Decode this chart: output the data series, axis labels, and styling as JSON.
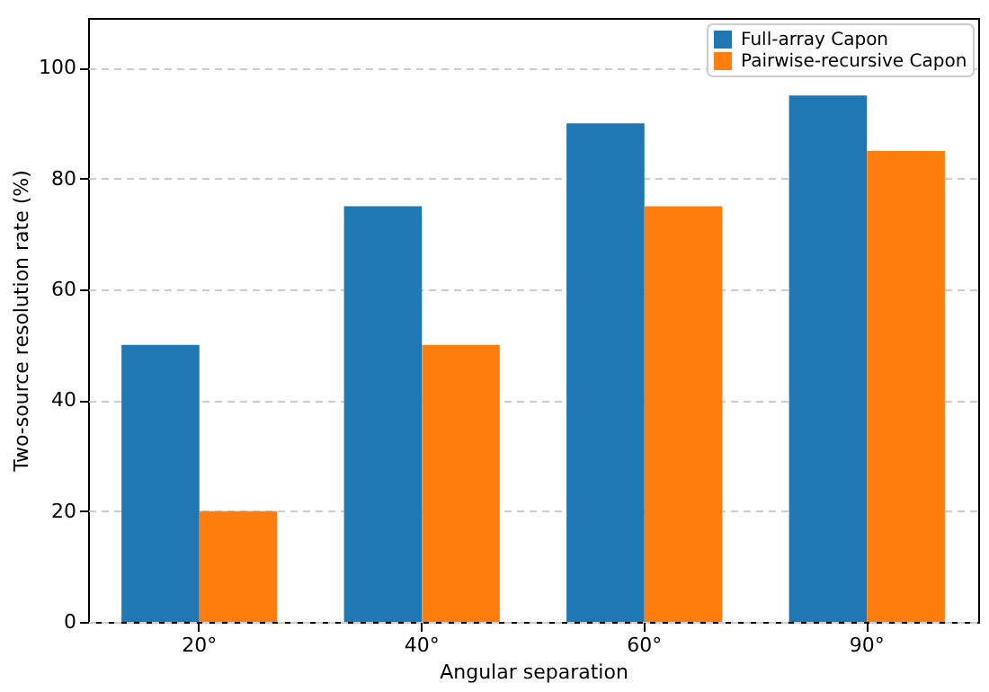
{
  "chart_data": {
    "type": "bar",
    "xlabel": "Angular separation",
    "ylabel": "Two-source resolution rate (%)",
    "categories": [
      "20°",
      "40°",
      "60°",
      "90°"
    ],
    "series": [
      {
        "name": "Full-array Capon",
        "color": "#1f77b4",
        "values": [
          50,
          75,
          90,
          95
        ]
      },
      {
        "name": "Pairwise-recursive Capon",
        "color": "#ff7f0e",
        "values": [
          20,
          50,
          75,
          85
        ]
      }
    ],
    "ylim": [
      0,
      109
    ],
    "yticks": [
      0,
      20,
      40,
      60,
      80,
      100
    ],
    "grid": "y",
    "legend": "top right"
  }
}
